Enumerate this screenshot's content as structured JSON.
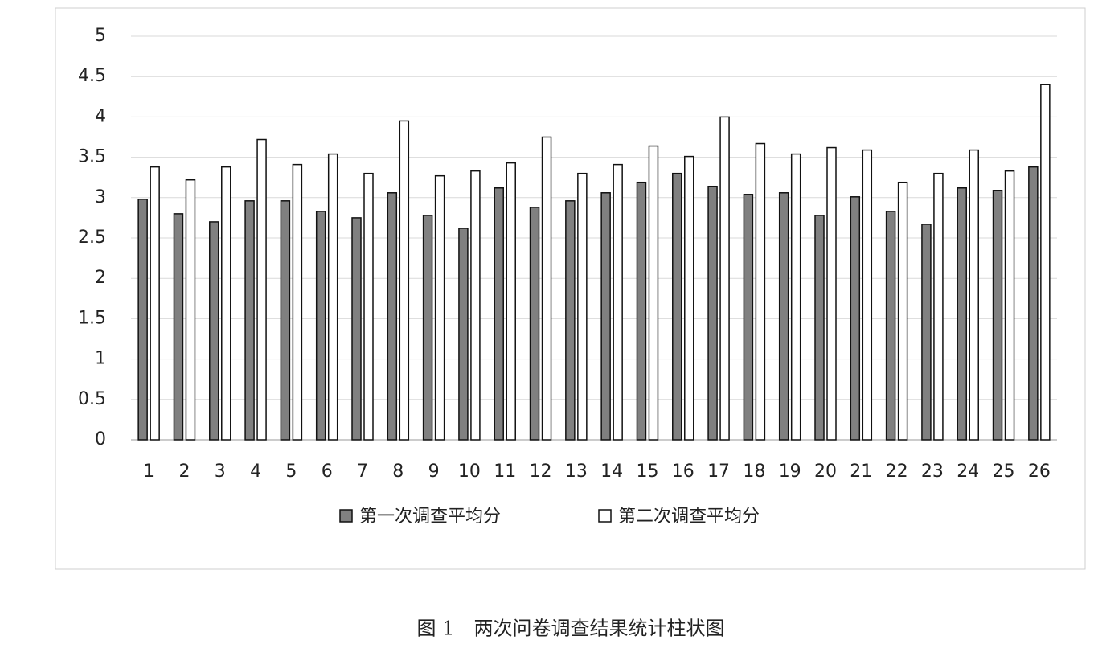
{
  "chart_data": {
    "type": "bar",
    "categories": [
      "1",
      "2",
      "3",
      "4",
      "5",
      "6",
      "7",
      "8",
      "9",
      "10",
      "11",
      "12",
      "13",
      "14",
      "15",
      "16",
      "17",
      "18",
      "19",
      "20",
      "21",
      "22",
      "23",
      "24",
      "25",
      "26"
    ],
    "series": [
      {
        "name": "第一次调查平均分",
        "color": "#808080",
        "values": [
          2.98,
          2.8,
          2.7,
          2.96,
          2.96,
          2.83,
          2.75,
          3.06,
          2.78,
          2.62,
          3.12,
          2.88,
          2.96,
          3.06,
          3.19,
          3.3,
          3.14,
          3.04,
          3.06,
          2.78,
          3.01,
          2.83,
          2.67,
          3.12,
          3.09,
          3.38
        ]
      },
      {
        "name": "第二次调查平均分",
        "color": "#ffffff",
        "values": [
          3.38,
          3.22,
          3.38,
          3.72,
          3.41,
          3.54,
          3.3,
          3.95,
          3.27,
          3.33,
          3.43,
          3.75,
          3.3,
          3.41,
          3.64,
          3.51,
          4.0,
          3.67,
          3.54,
          3.62,
          3.59,
          3.19,
          3.3,
          3.59,
          3.33,
          4.4
        ]
      }
    ],
    "ylim": [
      0,
      5
    ],
    "yticks": [
      0,
      0.5,
      1,
      1.5,
      2,
      2.5,
      3,
      3.5,
      4,
      4.5,
      5
    ],
    "grid": true,
    "legend": "bottom",
    "caption": "图 1　两次问卷调查结果统计柱状图"
  }
}
